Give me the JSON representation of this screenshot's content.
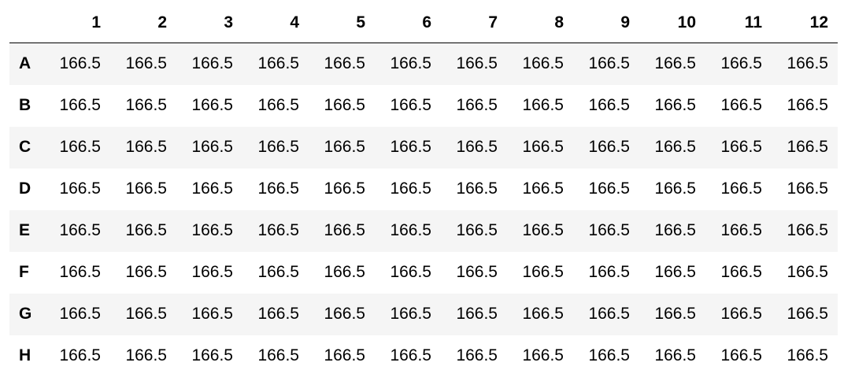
{
  "table": {
    "columns": [
      "1",
      "2",
      "3",
      "4",
      "5",
      "6",
      "7",
      "8",
      "9",
      "10",
      "11",
      "12"
    ],
    "rows": [
      {
        "label": "A",
        "values": [
          "166.5",
          "166.5",
          "166.5",
          "166.5",
          "166.5",
          "166.5",
          "166.5",
          "166.5",
          "166.5",
          "166.5",
          "166.5",
          "166.5"
        ]
      },
      {
        "label": "B",
        "values": [
          "166.5",
          "166.5",
          "166.5",
          "166.5",
          "166.5",
          "166.5",
          "166.5",
          "166.5",
          "166.5",
          "166.5",
          "166.5",
          "166.5"
        ]
      },
      {
        "label": "C",
        "values": [
          "166.5",
          "166.5",
          "166.5",
          "166.5",
          "166.5",
          "166.5",
          "166.5",
          "166.5",
          "166.5",
          "166.5",
          "166.5",
          "166.5"
        ]
      },
      {
        "label": "D",
        "values": [
          "166.5",
          "166.5",
          "166.5",
          "166.5",
          "166.5",
          "166.5",
          "166.5",
          "166.5",
          "166.5",
          "166.5",
          "166.5",
          "166.5"
        ]
      },
      {
        "label": "E",
        "values": [
          "166.5",
          "166.5",
          "166.5",
          "166.5",
          "166.5",
          "166.5",
          "166.5",
          "166.5",
          "166.5",
          "166.5",
          "166.5",
          "166.5"
        ]
      },
      {
        "label": "F",
        "values": [
          "166.5",
          "166.5",
          "166.5",
          "166.5",
          "166.5",
          "166.5",
          "166.5",
          "166.5",
          "166.5",
          "166.5",
          "166.5",
          "166.5"
        ]
      },
      {
        "label": "G",
        "values": [
          "166.5",
          "166.5",
          "166.5",
          "166.5",
          "166.5",
          "166.5",
          "166.5",
          "166.5",
          "166.5",
          "166.5",
          "166.5",
          "166.5"
        ]
      },
      {
        "label": "H",
        "values": [
          "166.5",
          "166.5",
          "166.5",
          "166.5",
          "166.5",
          "166.5",
          "166.5",
          "166.5",
          "166.5",
          "166.5",
          "166.5",
          "166.5"
        ]
      }
    ]
  },
  "colors": {
    "stripe": "#f5f5f5",
    "background": "#ffffff",
    "header_rule": "#000000"
  }
}
